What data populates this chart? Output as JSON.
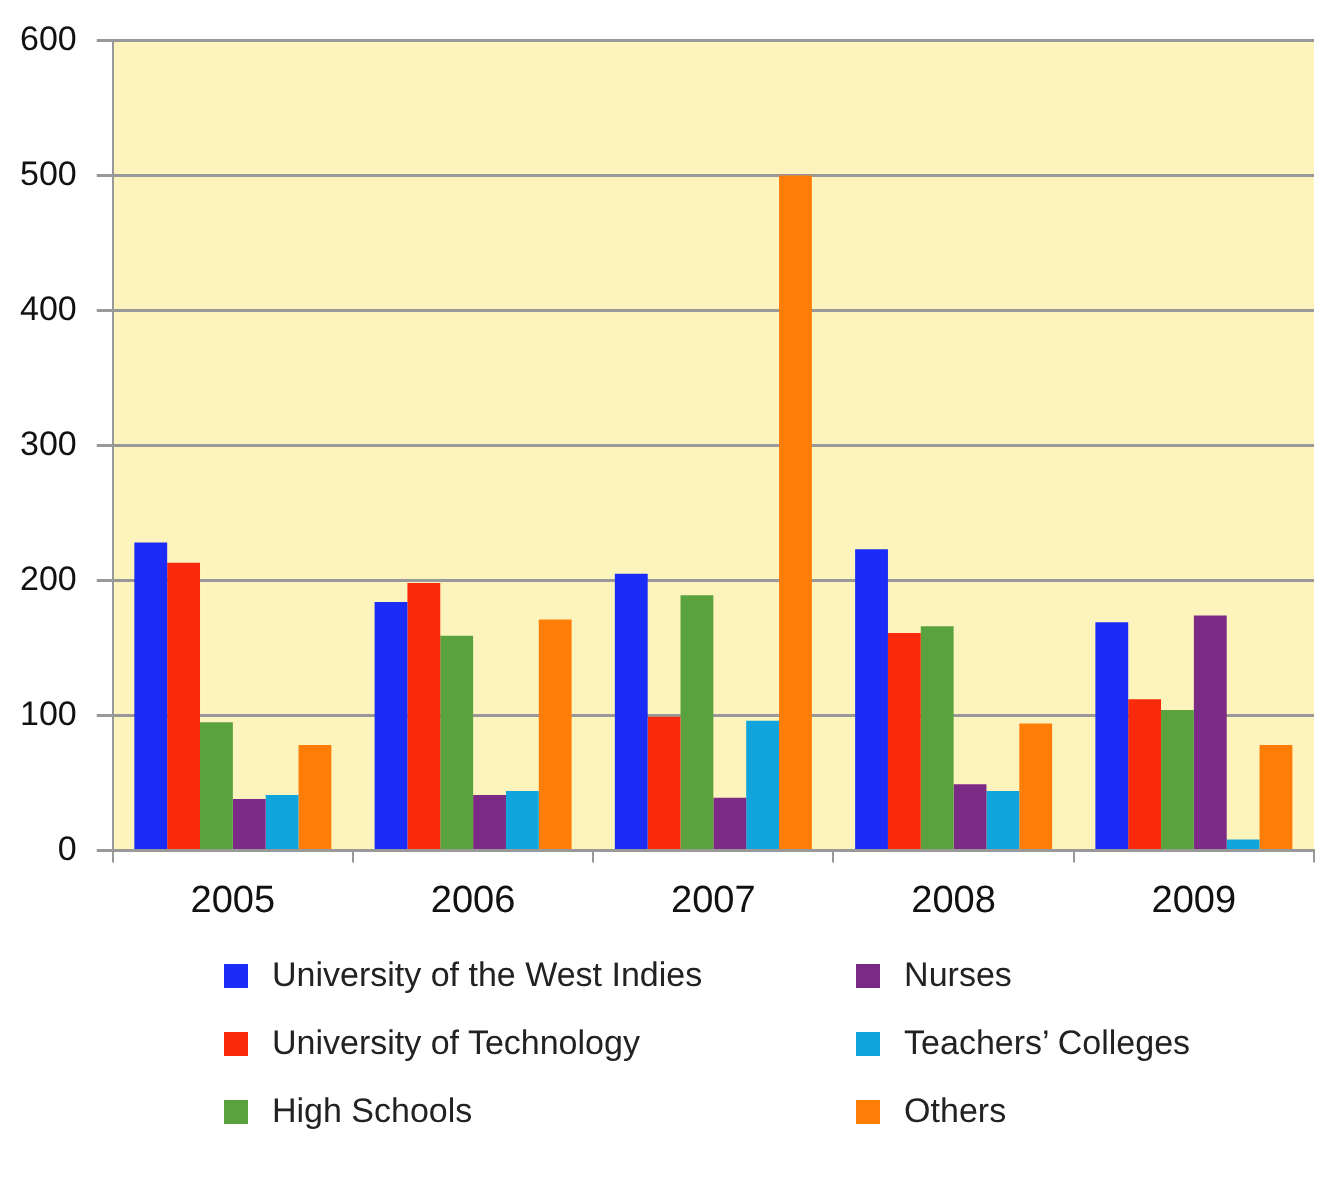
{
  "chart_data": {
    "type": "bar",
    "categories": [
      "2005",
      "2006",
      "2007",
      "2008",
      "2009"
    ],
    "series": [
      {
        "name": "University of the West Indies",
        "color": "#1a2cf5",
        "values": [
          228,
          184,
          205,
          223,
          169
        ]
      },
      {
        "name": "University of Technology",
        "color": "#fb2a0c",
        "values": [
          213,
          198,
          99,
          161,
          112
        ]
      },
      {
        "name": "High Schools",
        "color": "#5aa23e",
        "values": [
          95,
          159,
          189,
          166,
          104
        ]
      },
      {
        "name": "Nurses",
        "color": "#7b2a86",
        "values": [
          38,
          41,
          39,
          49,
          174
        ]
      },
      {
        "name": "Teachers’ Colleges",
        "color": "#12a5dd",
        "values": [
          41,
          44,
          96,
          44,
          8
        ]
      },
      {
        "name": "Others",
        "color": "#fe7d06",
        "values": [
          78,
          171,
          500,
          94,
          78
        ]
      }
    ],
    "ylim": [
      0,
      600
    ],
    "yticks": [
      0,
      100,
      200,
      300,
      400,
      500,
      600
    ],
    "grid": "y",
    "legend": "bottom"
  }
}
